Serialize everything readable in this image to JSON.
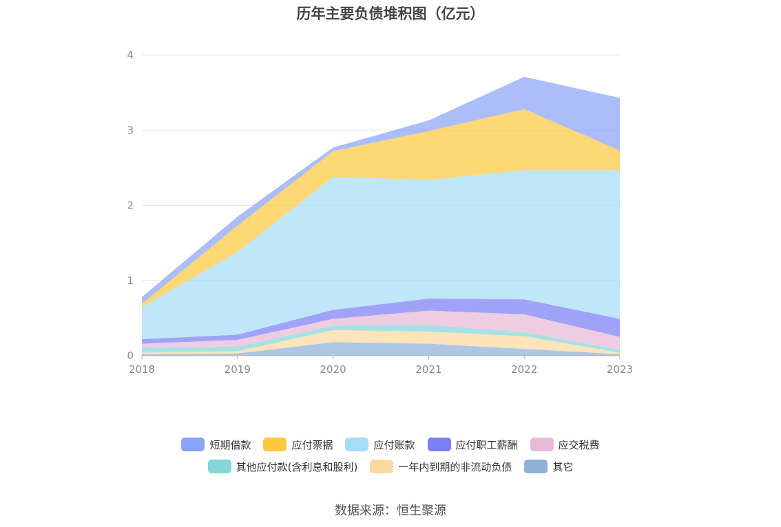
{
  "source_note": "数据来源：恒生聚源",
  "chart_data": {
    "type": "area",
    "stacked": true,
    "title": "历年主要负债堆积图（亿元）",
    "xlabel": "",
    "ylabel": "",
    "x": [
      "2018",
      "2019",
      "2020",
      "2021",
      "2022",
      "2023"
    ],
    "ylim": [
      0,
      4
    ],
    "yticks": [
      "0",
      "1",
      "2",
      "3",
      "4"
    ],
    "grid": true,
    "legend_position": "bottom",
    "series": [
      {
        "name": "其它",
        "color": "#8eb0da",
        "values": [
          0.02,
          0.03,
          0.18,
          0.16,
          0.09,
          0.02
        ]
      },
      {
        "name": "一年内到期的非流动负债",
        "color": "#fdd9a0",
        "values": [
          0.02,
          0.03,
          0.16,
          0.16,
          0.17,
          0.02
        ]
      },
      {
        "name": "其他应付款(含利息和股利)",
        "color": "#86d5d8",
        "values": [
          0.07,
          0.06,
          0.06,
          0.09,
          0.05,
          0.04
        ]
      },
      {
        "name": "应交税费",
        "color": "#e8bad8",
        "values": [
          0.05,
          0.09,
          0.09,
          0.19,
          0.24,
          0.17
        ]
      },
      {
        "name": "应付职工薪酬",
        "color": "#7b7ef5",
        "values": [
          0.06,
          0.07,
          0.12,
          0.16,
          0.2,
          0.24
        ]
      },
      {
        "name": "应付账款",
        "color": "#a6dcf7",
        "values": [
          0.43,
          1.1,
          1.77,
          1.58,
          1.72,
          1.98
        ]
      },
      {
        "name": "应付票据",
        "color": "#fcc93e",
        "values": [
          0.04,
          0.35,
          0.34,
          0.65,
          0.81,
          0.26
        ]
      },
      {
        "name": "短期借款",
        "color": "#8ba3f9",
        "values": [
          0.09,
          0.12,
          0.05,
          0.14,
          0.43,
          0.7
        ]
      }
    ],
    "legend_order": [
      "短期借款",
      "应付票据",
      "应付账款",
      "应付职工薪酬",
      "应交税费",
      "其他应付款(含利息和股利)",
      "一年内到期的非流动负债",
      "其它"
    ]
  }
}
